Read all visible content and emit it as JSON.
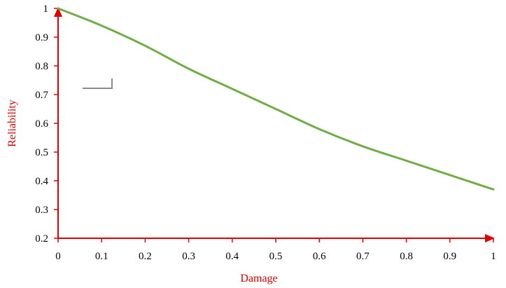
{
  "chart_data": {
    "type": "line",
    "xlabel": "Damage",
    "ylabel": "Reliability",
    "xlim": [
      0,
      1
    ],
    "ylim": [
      0.2,
      1
    ],
    "x_ticks": [
      "0",
      "0.1",
      "0.2",
      "0.3",
      "0.4",
      "0.5",
      "0.6",
      "0.7",
      "0.8",
      "0.9",
      "1"
    ],
    "y_ticks": [
      "0.2",
      "0.3",
      "0.4",
      "0.5",
      "0.6",
      "0.7",
      "0.8",
      "0.9",
      "1"
    ],
    "grid": false,
    "series": [
      {
        "color": "#70ad47",
        "x": [
          0,
          0.1,
          0.2,
          0.3,
          0.4,
          0.5,
          0.6,
          0.7,
          0.8,
          0.9,
          1
        ],
        "y": [
          1.0,
          0.94,
          0.87,
          0.79,
          0.72,
          0.65,
          0.58,
          0.52,
          0.47,
          0.42,
          0.37
        ]
      }
    ],
    "axis_color": "#e00000"
  }
}
